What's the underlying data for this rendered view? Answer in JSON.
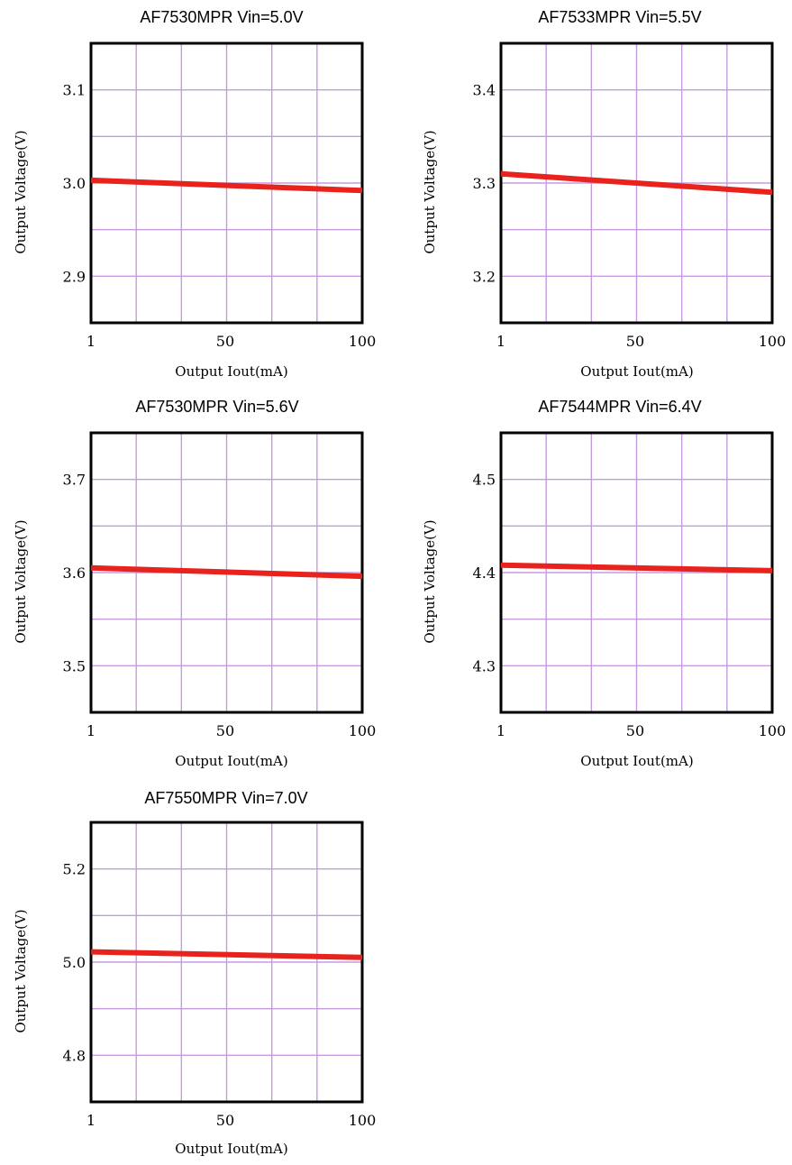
{
  "colors": {
    "grid": "#c59be0",
    "frame": "#000000",
    "series": "#e8221c"
  },
  "chart_data": [
    {
      "type": "line",
      "title": "AF7530MPR Vin=5.0V",
      "xlabel": "Output Iout(mA)",
      "ylabel": "Output Voltage(V)",
      "xlim": [
        1,
        100
      ],
      "ylim": [
        2.85,
        3.15
      ],
      "xticks": [
        1,
        50,
        100
      ],
      "yticks": [
        2.9,
        3.0,
        3.1
      ],
      "xtick_labels": [
        "1",
        "50",
        "100"
      ],
      "ytick_labels": [
        "2.9",
        "3.0",
        "3.1"
      ],
      "series": [
        {
          "x": [
            1,
            100
          ],
          "y": [
            3.003,
            2.992
          ]
        }
      ]
    },
    {
      "type": "line",
      "title": "AF7533MPR Vin=5.5V",
      "xlabel": "Output Iout(mA)",
      "ylabel": "Output Voltage(V)",
      "xlim": [
        1,
        100
      ],
      "ylim": [
        3.15,
        3.45
      ],
      "xticks": [
        1,
        50,
        100
      ],
      "yticks": [
        3.2,
        3.3,
        3.4
      ],
      "xtick_labels": [
        "1",
        "50",
        "100"
      ],
      "ytick_labels": [
        "3.2",
        "3.3",
        "3.4"
      ],
      "series": [
        {
          "x": [
            1,
            100
          ],
          "y": [
            3.31,
            3.29
          ]
        }
      ]
    },
    {
      "type": "line",
      "title": "AF7530MPR Vin=5.6V",
      "xlabel": "Output Iout(mA)",
      "ylabel": "Output Voltage(V)",
      "xlim": [
        1,
        100
      ],
      "ylim": [
        3.45,
        3.75
      ],
      "xticks": [
        1,
        50,
        100
      ],
      "yticks": [
        3.5,
        3.6,
        3.7
      ],
      "xtick_labels": [
        "1",
        "50",
        "100"
      ],
      "ytick_labels": [
        "3.5",
        "3.6",
        "3.7"
      ],
      "series": [
        {
          "x": [
            1,
            100
          ],
          "y": [
            3.605,
            3.596
          ]
        }
      ]
    },
    {
      "type": "line",
      "title": "AF7544MPR Vin=6.4V",
      "xlabel": "Output Iout(mA)",
      "ylabel": "Output Voltage(V)",
      "xlim": [
        1,
        100
      ],
      "ylim": [
        4.25,
        4.55
      ],
      "xticks": [
        1,
        50,
        100
      ],
      "yticks": [
        4.3,
        4.4,
        4.5
      ],
      "xtick_labels": [
        "1",
        "50",
        "100"
      ],
      "ytick_labels": [
        "4.3",
        "4.4",
        "4.5"
      ],
      "series": [
        {
          "x": [
            1,
            100
          ],
          "y": [
            4.408,
            4.402
          ]
        }
      ]
    },
    {
      "type": "line",
      "title": "AF7550MPR Vin=7.0V",
      "xlabel": "Output Iout(mA)",
      "ylabel": "Output Voltage(V)",
      "xlim": [
        1,
        100
      ],
      "ylim": [
        4.7,
        5.3
      ],
      "xticks": [
        1,
        50,
        100
      ],
      "yticks": [
        4.8,
        5.0,
        5.2
      ],
      "xtick_labels": [
        "1",
        "50",
        "100"
      ],
      "ytick_labels": [
        "4.8",
        "5.0",
        "5.2"
      ],
      "series": [
        {
          "x": [
            1,
            100
          ],
          "y": [
            5.022,
            5.01
          ]
        }
      ]
    }
  ]
}
